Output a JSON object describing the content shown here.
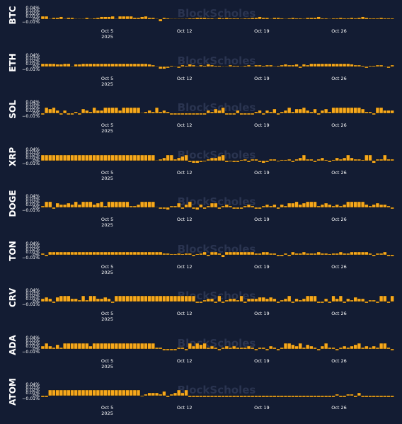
{
  "watermark": "BlockScholes",
  "colors": {
    "background": "#131c33",
    "bar": "#f7a81b",
    "bar_edge": "#121212",
    "text": "#ffffff",
    "watermark": "#2a3450"
  },
  "x_ticks": [
    {
      "day": "2025-10-05",
      "label": "Oct 5",
      "sublabel": "2025"
    },
    {
      "day": "2025-10-12",
      "label": "Oct 12",
      "sublabel": ""
    },
    {
      "day": "2025-10-19",
      "label": "Oct 19",
      "sublabel": ""
    },
    {
      "day": "2025-10-26",
      "label": "Oct 26",
      "sublabel": ""
    }
  ],
  "chart_data": [
    {
      "type": "bar",
      "label": "BTC",
      "x_range": [
        "2025-09-29",
        "2025-10-31"
      ],
      "bar_unit": "8h",
      "yticks": [
        {
          "value": 0.04,
          "label": "0.04%"
        },
        {
          "value": 0.03,
          "label": "0.03%"
        },
        {
          "value": 0.02,
          "label": "0.02%"
        },
        {
          "value": 0.01,
          "label": "0.01%"
        },
        {
          "value": 0,
          "label": "0%"
        },
        {
          "value": -0.01,
          "label": "−0.01%"
        }
      ],
      "ylim": [
        -0.0125,
        0.045
      ],
      "values": [
        0.01,
        0.01,
        0,
        0.005,
        0.005,
        0.008,
        0,
        0.005,
        0.005,
        0,
        0,
        0,
        0.005,
        0,
        0.003,
        0.005,
        0.008,
        0.008,
        0.008,
        0.01,
        0,
        0.01,
        0.01,
        0.01,
        0.01,
        0.005,
        0.005,
        0.008,
        0.01,
        0.005,
        0.005,
        0,
        -0.008,
        0.005,
        0.003,
        0,
        0,
        0,
        0,
        0.002,
        0.003,
        0.003,
        0.005,
        0.005,
        0.005,
        0.003,
        0.003,
        0,
        0.005,
        0.003,
        0.005,
        0.003,
        0.003,
        0.003,
        0.002,
        0.003,
        0.003,
        0.005,
        0.005,
        0.008,
        0.005,
        0.005,
        0,
        0.005,
        0.005,
        0.003,
        0,
        0.003,
        0.005,
        0.003,
        0.003,
        0.002,
        0.005,
        0.005,
        0.005,
        0.008,
        0.003,
        0.003,
        0,
        0.003,
        0.003,
        0.005,
        0.003,
        0.003,
        0.005,
        0.003,
        0.005,
        0.008,
        0.005,
        0.003,
        0.003,
        0.003,
        0.005,
        0.003,
        0.003,
        0.003
      ]
    },
    {
      "type": "bar",
      "label": "ETH",
      "x_range": [
        "2025-09-29",
        "2025-10-31"
      ],
      "bar_unit": "8h",
      "yticks": [
        {
          "value": 0.04,
          "label": "0.04%"
        },
        {
          "value": 0.03,
          "label": "0.03%"
        },
        {
          "value": 0.02,
          "label": "0.02%"
        },
        {
          "value": 0.01,
          "label": "0.01%"
        },
        {
          "value": 0,
          "label": "0%"
        },
        {
          "value": -0.01,
          "label": "−0.01%"
        }
      ],
      "ylim": [
        -0.0125,
        0.045
      ],
      "values": [
        0.01,
        0.01,
        0.01,
        0.01,
        0.008,
        0.008,
        0.01,
        0.01,
        0,
        0.008,
        0.008,
        0.01,
        0.01,
        0.01,
        0.01,
        0.01,
        0.01,
        0.01,
        0.01,
        0.01,
        0.01,
        0.01,
        0.01,
        0.01,
        0.01,
        0.01,
        0.01,
        0.01,
        0.01,
        0.008,
        0.005,
        0,
        -0.008,
        -0.008,
        -0.005,
        0.003,
        0,
        -0.005,
        0.005,
        0.003,
        0.008,
        0.005,
        0,
        0.005,
        0.003,
        0.008,
        0.005,
        0.003,
        0.003,
        0,
        0,
        0.005,
        0.003,
        0.003,
        0,
        0.003,
        0.005,
        0,
        0.005,
        0.005,
        0.003,
        0.005,
        0.005,
        0,
        0.003,
        0.005,
        0.008,
        0.005,
        0.005,
        0.008,
        -0.005,
        0.008,
        0.005,
        0.01,
        0.01,
        0.01,
        0.01,
        0.01,
        0.01,
        0.01,
        0.01,
        0.01,
        0.01,
        0.01,
        0.008,
        0.005,
        0.005,
        0.003,
        -0.005,
        0.003,
        0.003,
        0.005,
        0.005,
        0,
        -0.005,
        0.005
      ]
    },
    {
      "type": "bar",
      "label": "SOL",
      "x_range": [
        "2025-09-29",
        "2025-10-31"
      ],
      "bar_unit": "8h",
      "yticks": [
        {
          "value": 0.04,
          "label": "0.04%"
        },
        {
          "value": 0.03,
          "label": "0.03%"
        },
        {
          "value": 0.02,
          "label": "0.02%"
        },
        {
          "value": 0.01,
          "label": "0.01%"
        },
        {
          "value": 0,
          "label": "0%"
        },
        {
          "value": -0.01,
          "label": "−0.01%"
        }
      ],
      "ylim": [
        -0.0125,
        0.045
      ],
      "values": [
        -0.005,
        0.02,
        0.015,
        0.02,
        0.01,
        -0.005,
        0.01,
        -0.005,
        -0.005,
        0.005,
        -0.005,
        0.015,
        0.01,
        0.005,
        0.02,
        0.01,
        0.01,
        0.02,
        0.02,
        0.02,
        0.02,
        0.01,
        0.02,
        0.02,
        0.02,
        0.02,
        0.02,
        0,
        0.005,
        0.01,
        0.005,
        0.02,
        0.005,
        0.01,
        0.005,
        -0.005,
        -0.005,
        -0.005,
        -0.005,
        -0.005,
        -0.005,
        -0.005,
        -0.005,
        -0.005,
        -0.005,
        0.01,
        0.005,
        0.015,
        0.01,
        0.02,
        -0.005,
        -0.005,
        -0.005,
        0.01,
        -0.005,
        -0.005,
        -0.005,
        -0.005,
        0.005,
        0.01,
        -0.005,
        0.01,
        0.005,
        0.015,
        -0.005,
        0.005,
        0.01,
        0.02,
        0.005,
        0.015,
        0.015,
        0.02,
        0.01,
        0.005,
        0.015,
        -0.005,
        0.01,
        0.015,
        0.005,
        0.02,
        0.02,
        0.02,
        0.02,
        0.02,
        0.02,
        0.02,
        0.02,
        0.015,
        0.005,
        0.005,
        -0.005,
        0.02,
        0.02,
        0.01,
        0.01,
        0.01
      ]
    },
    {
      "type": "bar",
      "label": "XRP",
      "x_range": [
        "2025-09-29",
        "2025-10-31"
      ],
      "bar_unit": "8h",
      "yticks": [
        {
          "value": 0.04,
          "label": "0.04%"
        },
        {
          "value": 0.03,
          "label": "0.03%"
        },
        {
          "value": 0.02,
          "label": "0.02%"
        },
        {
          "value": 0.01,
          "label": "0.01%"
        },
        {
          "value": 0,
          "label": "0%"
        },
        {
          "value": -0.01,
          "label": "−0.01%"
        }
      ],
      "ylim": [
        -0.0125,
        0.045
      ],
      "values": [
        0.02,
        0.02,
        0.02,
        0.02,
        0.02,
        0.02,
        0.02,
        0.02,
        0.02,
        0.02,
        0.02,
        0.02,
        0.02,
        0.02,
        0.02,
        0.02,
        0.02,
        0.02,
        0.02,
        0.02,
        0.02,
        0.02,
        0.02,
        0.02,
        0.02,
        0.02,
        0.02,
        0.02,
        0.02,
        0.02,
        0.02,
        0,
        0.005,
        0.01,
        0.02,
        0.02,
        0.005,
        0.01,
        0.015,
        0.02,
        -0.005,
        -0.008,
        -0.008,
        -0.005,
        -0.003,
        0.005,
        0.01,
        0.01,
        0.015,
        0.02,
        -0.005,
        -0.003,
        -0.005,
        -0.005,
        0.003,
        0.005,
        -0.005,
        0.005,
        0.005,
        -0.005,
        -0.008,
        -0.005,
        0.005,
        0.005,
        -0.003,
        0.003,
        0.003,
        0.005,
        -0.005,
        0.005,
        0.01,
        0.02,
        0.005,
        0.005,
        -0.005,
        0.005,
        0.01,
        0.003,
        -0.005,
        0.003,
        0.01,
        0.005,
        0.01,
        0.02,
        0.01,
        0.005,
        0.005,
        0.003,
        0.02,
        0.02,
        -0.008,
        0.005,
        0.005,
        0.02,
        0.005,
        0.005
      ]
    },
    {
      "type": "bar",
      "label": "DOGE",
      "x_range": [
        "2025-09-29",
        "2025-10-31"
      ],
      "bar_unit": "8h",
      "yticks": [
        {
          "value": 0.04,
          "label": "0.04%"
        },
        {
          "value": 0.03,
          "label": "0.03%"
        },
        {
          "value": 0.02,
          "label": "0.02%"
        },
        {
          "value": 0.01,
          "label": "0.01%"
        },
        {
          "value": 0,
          "label": "0%"
        },
        {
          "value": -0.01,
          "label": "−0.01%"
        }
      ],
      "ylim": [
        -0.0125,
        0.045
      ],
      "values": [
        0.005,
        0.02,
        0.02,
        -0.005,
        0.015,
        0.01,
        0.01,
        0.015,
        0.01,
        0.02,
        0.01,
        0.02,
        0.02,
        0.02,
        0.01,
        0.015,
        0.02,
        0.005,
        0.02,
        0.02,
        0.02,
        0.02,
        0.02,
        0.02,
        0.005,
        0.005,
        0.01,
        0.02,
        0.02,
        0.02,
        0.02,
        0,
        -0.005,
        -0.005,
        -0.008,
        0.005,
        0.005,
        0.015,
        -0.005,
        0.01,
        0.02,
        -0.005,
        -0.008,
        0.01,
        -0.005,
        0.005,
        0.015,
        0.015,
        -0.005,
        0.005,
        0.01,
        0.005,
        -0.005,
        -0.005,
        -0.005,
        0.005,
        0.01,
        0.005,
        -0.005,
        -0.005,
        0.005,
        0.01,
        0.005,
        0.01,
        -0.005,
        0.01,
        0.005,
        0.015,
        0.015,
        0.02,
        0.01,
        0.015,
        0.02,
        0.02,
        0.02,
        0.005,
        0.01,
        0.015,
        0.01,
        0.005,
        0.01,
        0.005,
        0.01,
        0.02,
        0.02,
        0.02,
        0.02,
        0.02,
        0.01,
        0.005,
        0.01,
        0.015,
        0.01,
        0.01,
        0.005,
        -0.005
      ]
    },
    {
      "type": "bar",
      "label": "TON",
      "x_range": [
        "2025-09-29",
        "2025-10-31"
      ],
      "bar_unit": "8h",
      "yticks": [
        {
          "value": 0.04,
          "label": "0.04%"
        },
        {
          "value": 0.03,
          "label": "0.03%"
        },
        {
          "value": 0.02,
          "label": "0.02%"
        },
        {
          "value": 0.01,
          "label": "0.01%"
        },
        {
          "value": 0,
          "label": "0%"
        },
        {
          "value": -0.01,
          "label": "−0.01%"
        }
      ],
      "ylim": [
        -0.0125,
        0.045
      ],
      "values": [
        0.005,
        -0.005,
        0.01,
        0.01,
        0.01,
        0.01,
        0.01,
        0.01,
        0.01,
        0.01,
        0.01,
        0.01,
        0.01,
        0.01,
        0.01,
        0.01,
        0.01,
        0.01,
        0.01,
        0.01,
        0.01,
        0.01,
        0.01,
        0.01,
        0.01,
        0.01,
        0.01,
        0.01,
        0.01,
        0.01,
        0.01,
        0.01,
        0.01,
        0.005,
        0.005,
        0.003,
        0.003,
        0.005,
        0.003,
        0.005,
        0.005,
        -0.005,
        0.003,
        0.005,
        0.01,
        -0.005,
        0.01,
        0.01,
        0.005,
        -0.008,
        0.01,
        0.01,
        0.01,
        0.01,
        0.01,
        0.01,
        0.01,
        0.01,
        0.005,
        0.005,
        0.01,
        0.01,
        0.005,
        0.005,
        -0.005,
        -0.005,
        0.005,
        -0.005,
        0.01,
        0.005,
        0.005,
        0.01,
        0.005,
        0.005,
        0.005,
        0.01,
        0.005,
        0.005,
        0.003,
        0.005,
        0.005,
        0.01,
        0.005,
        0.005,
        0.01,
        0.01,
        0.01,
        0.01,
        0.01,
        0.005,
        -0.005,
        0.005,
        0.005,
        0.01,
        -0.005,
        -0.005
      ]
    },
    {
      "type": "bar",
      "label": "CRV",
      "x_range": [
        "2025-09-29",
        "2025-10-31"
      ],
      "bar_unit": "8h",
      "yticks": [
        {
          "value": 0.04,
          "label": "0.04%"
        },
        {
          "value": 0.03,
          "label": "0.03%"
        },
        {
          "value": 0.02,
          "label": "0.02%"
        },
        {
          "value": 0.01,
          "label": "0.01%"
        },
        {
          "value": 0,
          "label": "0%"
        },
        {
          "value": -0.01,
          "label": "−0.01%"
        }
      ],
      "ylim": [
        -0.0125,
        0.045
      ],
      "values": [
        0.01,
        0.015,
        0.01,
        -0.005,
        0.015,
        0.02,
        0.02,
        0.02,
        0.01,
        0.01,
        0.005,
        0.02,
        0.005,
        0.02,
        0.02,
        0.01,
        0.01,
        0.015,
        0.01,
        -0.005,
        0.02,
        0.02,
        0.02,
        0.02,
        0.02,
        0.02,
        0.02,
        0.02,
        0.02,
        0.02,
        0.02,
        0.02,
        0.02,
        0.02,
        0.02,
        0.02,
        0.02,
        0.02,
        0.02,
        0.02,
        0.02,
        0.02,
        -0.005,
        -0.005,
        0.005,
        0.01,
        0.01,
        -0.005,
        0.02,
        -0.005,
        0.005,
        0.01,
        0.01,
        0.005,
        0.02,
        -0.005,
        0.01,
        0.01,
        0.01,
        0.015,
        0.015,
        0.01,
        0.015,
        0.01,
        -0.005,
        0.005,
        0.01,
        0.02,
        -0.005,
        0.01,
        0.005,
        0.01,
        0.02,
        0.02,
        0.02,
        -0.005,
        -0.005,
        0.01,
        -0.005,
        0.02,
        0.01,
        0.02,
        -0.005,
        0.01,
        0.005,
        0.015,
        0.01,
        0.01,
        -0.005,
        0.005,
        0.005,
        -0.005,
        0.02,
        0.02,
        -0.005,
        0.02
      ]
    },
    {
      "type": "bar",
      "label": "ADA",
      "x_range": [
        "2025-09-29",
        "2025-10-31"
      ],
      "bar_unit": "8h",
      "yticks": [
        {
          "value": 0.04,
          "label": "0.04%"
        },
        {
          "value": 0.03,
          "label": "0.03%"
        },
        {
          "value": 0.02,
          "label": "0.02%"
        },
        {
          "value": 0.01,
          "label": "0.01%"
        },
        {
          "value": 0,
          "label": "0%"
        },
        {
          "value": -0.01,
          "label": "−0.01%"
        }
      ],
      "ylim": [
        -0.0125,
        0.045
      ],
      "values": [
        0.01,
        0.02,
        0.01,
        0.005,
        0.015,
        0.005,
        0.02,
        0.02,
        0.02,
        0.02,
        0.02,
        0.02,
        0.02,
        0.01,
        0.02,
        0.02,
        0.02,
        0.02,
        0.02,
        0.02,
        0.02,
        0.02,
        0.02,
        0.02,
        0.02,
        0.02,
        0.02,
        0.02,
        0.02,
        0.02,
        0.02,
        0.005,
        0.005,
        -0.005,
        -0.005,
        -0.005,
        -0.005,
        0.005,
        0.005,
        -0.005,
        0.02,
        0.01,
        0.02,
        0.015,
        0.02,
        0.005,
        0.01,
        0.005,
        -0.005,
        0.005,
        0.01,
        0.005,
        0.01,
        0.005,
        0.005,
        0.005,
        0.01,
        0.005,
        -0.005,
        0.005,
        0.005,
        -0.005,
        0.01,
        0.005,
        -0.005,
        0.005,
        0.02,
        0.02,
        0.015,
        0.01,
        0.02,
        0.005,
        0.015,
        0.01,
        0.005,
        -0.005,
        0.01,
        0.02,
        0.005,
        0.005,
        -0.005,
        0.005,
        0.01,
        0.005,
        0.01,
        0.015,
        0.02,
        0.005,
        0.01,
        0.005,
        0.01,
        0.005,
        0.02,
        0.02,
        0.005,
        -0.005
      ]
    },
    {
      "type": "bar",
      "label": "ATOM",
      "x_range": [
        "2025-09-29",
        "2025-10-31"
      ],
      "bar_unit": "8h",
      "yticks": [
        {
          "value": 0.04,
          "label": "0.04%"
        },
        {
          "value": 0.03,
          "label": "0.03%"
        },
        {
          "value": 0.02,
          "label": "0.02%"
        },
        {
          "value": 0.01,
          "label": "0.01%"
        },
        {
          "value": 0,
          "label": "0%"
        },
        {
          "value": -0.01,
          "label": "−0.01%"
        }
      ],
      "ylim": [
        -0.0125,
        0.045
      ],
      "values": [
        -0.005,
        -0.005,
        0.02,
        0.02,
        0.02,
        0.02,
        0.02,
        0.02,
        0.02,
        0.02,
        0.02,
        0.02,
        0.02,
        0.02,
        0.02,
        0.02,
        0.02,
        0.02,
        0.02,
        0.02,
        0.02,
        0.02,
        0.02,
        0.02,
        0.02,
        0.02,
        0.02,
        -0.003,
        0.005,
        0.01,
        0.01,
        0.01,
        0.005,
        0.015,
        -0.005,
        0.005,
        0.01,
        0.02,
        0.01,
        0.02,
        -0.005,
        -0.005,
        -0.005,
        -0.005,
        -0.005,
        -0.005,
        -0.005,
        -0.005,
        -0.005,
        -0.005,
        -0.005,
        -0.005,
        -0.005,
        -0.005,
        -0.005,
        -0.005,
        -0.005,
        -0.005,
        -0.005,
        -0.005,
        -0.005,
        -0.005,
        -0.005,
        -0.005,
        -0.005,
        -0.005,
        -0.005,
        -0.005,
        -0.005,
        -0.005,
        -0.005,
        -0.005,
        -0.005,
        -0.005,
        -0.005,
        -0.005,
        -0.005,
        -0.005,
        -0.005,
        -0.005,
        0.005,
        -0.005,
        -0.005,
        0.005,
        0.005,
        -0.005,
        0.01,
        -0.005,
        -0.005,
        -0.005,
        -0.005,
        -0.005,
        -0.005,
        -0.005,
        -0.005,
        -0.005
      ]
    }
  ]
}
